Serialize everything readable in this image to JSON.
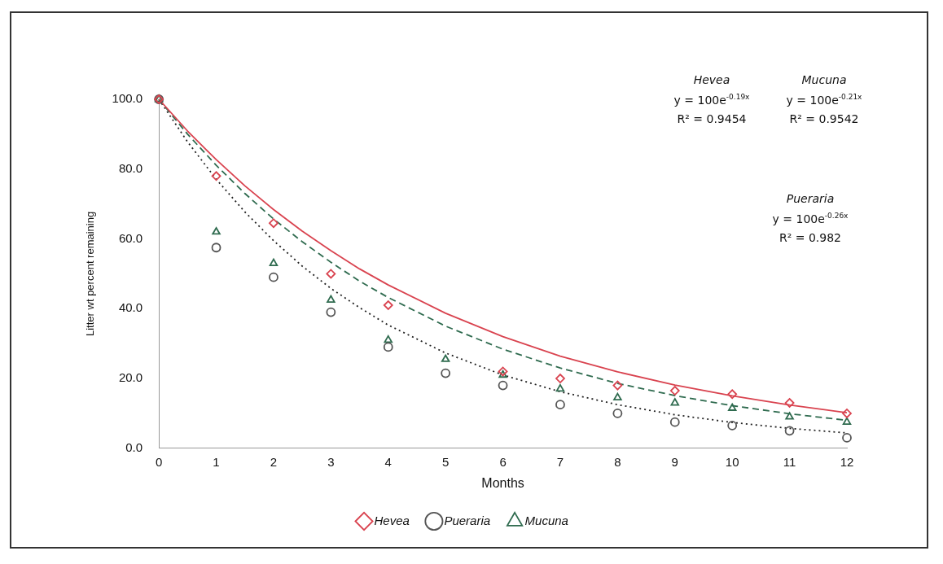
{
  "chart_data": {
    "type": "scatter",
    "xlabel": "Months",
    "ylabel": "Litter wt percent remaining",
    "xlim": [
      0,
      12
    ],
    "xticks": [
      0,
      1,
      2,
      3,
      4,
      5,
      6,
      7,
      8,
      9,
      10,
      11,
      12
    ],
    "ylim": [
      0,
      100
    ],
    "yticks": [
      {
        "value": 0,
        "label": "0.0"
      },
      {
        "value": 20,
        "label": "20.0"
      },
      {
        "value": 40,
        "label": "40.0"
      },
      {
        "value": 60,
        "label": "60.0"
      },
      {
        "value": 80,
        "label": "80.0"
      },
      {
        "value": 100,
        "label": "100.0"
      }
    ],
    "grid": false,
    "legend": "bottom",
    "x": [
      0,
      1,
      2,
      3,
      4,
      5,
      6,
      7,
      8,
      9,
      10,
      11,
      12
    ],
    "series": [
      {
        "name": "Hevea",
        "type": "scatter",
        "marker": "diamond",
        "color": "#d9434f",
        "values": [
          100,
          78,
          64.5,
          50,
          41,
          null,
          22,
          20,
          18,
          16.5,
          15.5,
          13,
          10
        ]
      },
      {
        "name": "Pueraria",
        "type": "scatter",
        "marker": "circle",
        "color": "#555555",
        "values": [
          100,
          57.5,
          49,
          39,
          29,
          21.5,
          18,
          12.5,
          10,
          7.5,
          6.5,
          5,
          3
        ]
      },
      {
        "name": "Mucuna",
        "type": "scatter",
        "marker": "triangle",
        "color": "#2f6b4f",
        "values": [
          100,
          62,
          53,
          42.5,
          31,
          25.5,
          21,
          17,
          14.5,
          13,
          11.5,
          9,
          7.5
        ]
      },
      {
        "type": "line",
        "line_style": "solid",
        "color": "#d9434f",
        "x": [
          0,
          0.5,
          1,
          1.5,
          2,
          2.5,
          3,
          3.5,
          4,
          5,
          6,
          7,
          8,
          9,
          10,
          11,
          12
        ],
        "values": [
          100,
          90.9,
          82.7,
          75.2,
          68.4,
          62.2,
          56.6,
          51.4,
          46.8,
          38.7,
          32.0,
          26.4,
          21.9,
          18.1,
          15.0,
          12.4,
          10.2
        ]
      },
      {
        "type": "line",
        "line_style": "dashed",
        "color": "#2f6b4f",
        "x": [
          0,
          0.5,
          1,
          1.5,
          2,
          2.5,
          3,
          3.5,
          4,
          5,
          6,
          7,
          8,
          9,
          10,
          11,
          12
        ],
        "values": [
          100,
          90.0,
          81.1,
          73.0,
          65.7,
          59.2,
          53.3,
          47.9,
          43.2,
          35.0,
          28.4,
          23.0,
          18.6,
          15.1,
          12.2,
          9.9,
          8.0
        ]
      },
      {
        "type": "line",
        "line_style": "dotted",
        "color": "#222222",
        "x": [
          0,
          0.5,
          1,
          1.5,
          2,
          2.5,
          3,
          3.5,
          4,
          5,
          6,
          7,
          8,
          9,
          10,
          11,
          12
        ],
        "values": [
          100,
          87.8,
          77.1,
          67.7,
          59.5,
          52.2,
          45.8,
          40.3,
          35.3,
          27.3,
          21.0,
          16.2,
          12.5,
          9.6,
          7.4,
          5.7,
          4.4
        ]
      }
    ],
    "annotations": [
      "Hevea",
      "y = 100e$^{-0.19x}$",
      "R² = 0.9454",
      "Mucuna",
      "y = 100e$^{-0.21x}$",
      "R² = 0.9542",
      "Pueraria",
      "y = 100e$^{-0.26x}$",
      "R² = 0.982"
    ]
  }
}
